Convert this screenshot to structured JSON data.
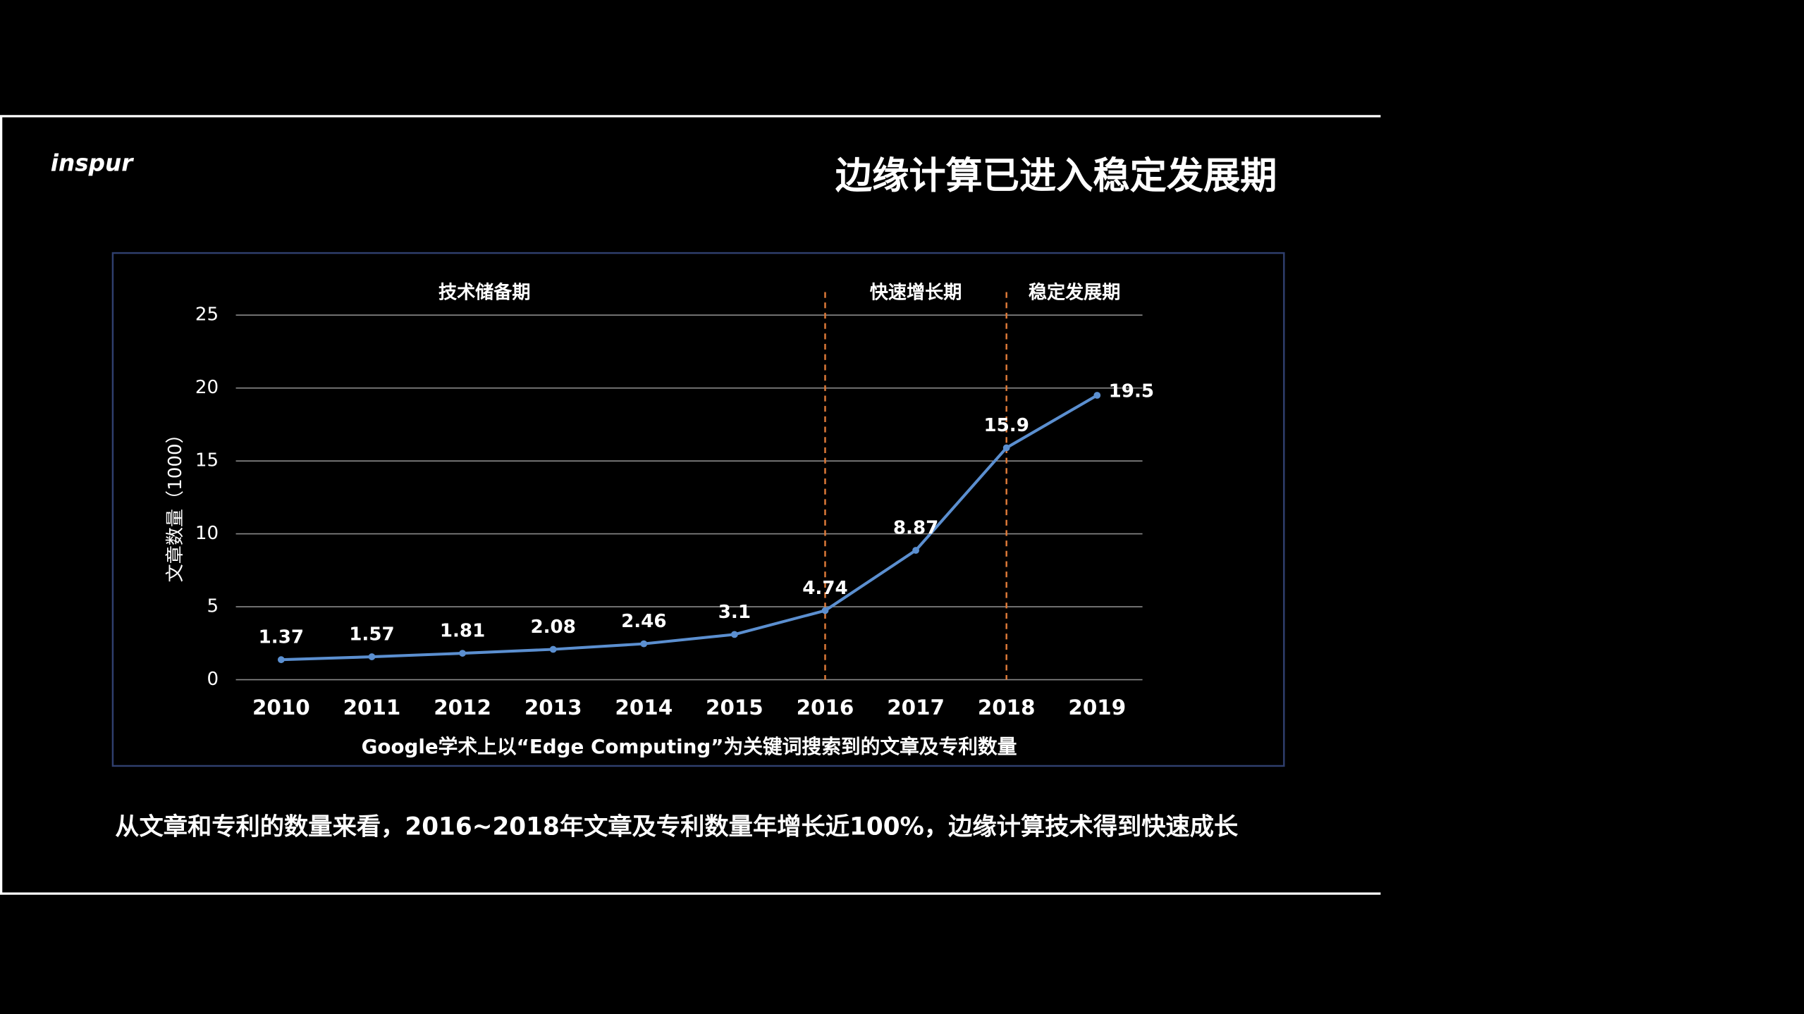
{
  "slide": {
    "logo": "inspur",
    "title": "边缘计算已进入稳定发展期",
    "caption": "从文章和专利的数量来看，2016~2018年文章及专利数量年增长近100%，边缘计算技术得到快速成长"
  },
  "chart_data": {
    "type": "line",
    "categories": [
      "2010",
      "2011",
      "2012",
      "2013",
      "2014",
      "2015",
      "2016",
      "2017",
      "2018",
      "2019"
    ],
    "series": [
      {
        "name": "文章数量",
        "color": "#5b8fd0",
        "values": [
          1.37,
          1.57,
          1.81,
          2.08,
          2.46,
          3.1,
          4.74,
          8.87,
          15.9,
          19.5
        ]
      }
    ],
    "y_label": "文章数量（1000）",
    "x_label": "Google学术上以“Edge Computing”为关键词搜索到的文章及专利数量",
    "ylim": [
      0,
      25
    ],
    "yticks": [
      0,
      5,
      10,
      15,
      20,
      25
    ],
    "grid": true,
    "phases": [
      {
        "label": "技术储备期",
        "start": "2010"
      },
      {
        "label": "快速增长期",
        "start": "2016"
      },
      {
        "label": "稳定发展期",
        "start": "2018"
      }
    ],
    "divider_color": "#e07b39"
  }
}
